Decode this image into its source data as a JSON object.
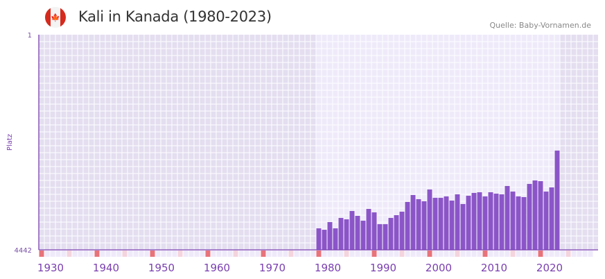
{
  "header": {
    "title": "Kali in Kanada (1980-2023)",
    "source": "Quelle: Baby-Vornamen.de",
    "flag_icon": "canada-flag-icon"
  },
  "chart_data": {
    "type": "bar",
    "title": "Kali in Kanada (1980-2023)",
    "ylabel": "Platz",
    "y_inverted": true,
    "ylim": [
      1,
      4442
    ],
    "ytick_labels": [
      "1",
      "4442"
    ],
    "xlim": [
      1930,
      2030
    ],
    "xtick_labels": [
      "1930",
      "1940",
      "1950",
      "1960",
      "1970",
      "1980",
      "1990",
      "2000",
      "2010",
      "2020"
    ],
    "x": [
      1980,
      1981,
      1982,
      1983,
      1984,
      1985,
      1986,
      1987,
      1988,
      1989,
      1990,
      1991,
      1992,
      1993,
      1994,
      1995,
      1996,
      1997,
      1998,
      1999,
      2000,
      2001,
      2002,
      2003,
      2004,
      2005,
      2006,
      2007,
      2008,
      2009,
      2010,
      2011,
      2012,
      2013,
      2014,
      2015,
      2016,
      2017,
      2018,
      2019,
      2020,
      2021,
      2022,
      2023
    ],
    "values": [
      3998,
      4027,
      3869,
      3998,
      3783,
      3812,
      3640,
      3740,
      3840,
      3597,
      3668,
      3912,
      3912,
      3783,
      3726,
      3654,
      3453,
      3310,
      3396,
      3439,
      3196,
      3368,
      3368,
      3339,
      3425,
      3296,
      3496,
      3325,
      3267,
      3253,
      3339,
      3253,
      3282,
      3296,
      3124,
      3239,
      3339,
      3353,
      3081,
      3009,
      3024,
      3239,
      3153,
      2393
    ],
    "colors": {
      "bar": "#8b55c8",
      "axis": "#7a3fb0",
      "shade_out": "#e4def0",
      "shade_in": "#efeafa",
      "marker_decade": "#e8737a",
      "marker_half": "#f4d4de",
      "marker_other": "#efeafa"
    }
  }
}
